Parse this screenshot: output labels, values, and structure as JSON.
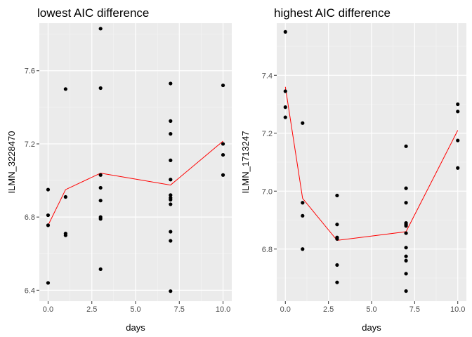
{
  "chart_data": [
    {
      "type": "scatter",
      "title": "lowest AIC difference",
      "xlabel": "days",
      "ylabel": "ILMN_3228470",
      "xlim": [
        -0.5,
        10.5
      ],
      "ylim": [
        6.34,
        7.86
      ],
      "xticks": [
        0.0,
        2.5,
        5.0,
        7.5,
        10.0
      ],
      "xtick_labels": [
        "0.0",
        "2.5",
        "5.0",
        "7.5",
        "10.0"
      ],
      "yticks": [
        6.4,
        6.8,
        7.2,
        7.6
      ],
      "ytick_labels": [
        "6.4",
        "6.8",
        "7.2",
        "7.6"
      ],
      "grid": true,
      "points": [
        [
          0,
          6.95
        ],
        [
          0,
          6.81
        ],
        [
          0,
          6.755
        ],
        [
          0,
          6.44
        ],
        [
          1,
          7.5
        ],
        [
          1,
          6.91
        ],
        [
          1,
          6.71
        ],
        [
          1,
          6.7
        ],
        [
          3,
          7.83
        ],
        [
          3,
          7.505
        ],
        [
          3,
          7.03
        ],
        [
          3,
          6.96
        ],
        [
          3,
          6.89
        ],
        [
          3,
          6.8
        ],
        [
          3,
          6.79
        ],
        [
          3,
          6.515
        ],
        [
          7,
          7.53
        ],
        [
          7,
          7.325
        ],
        [
          7,
          7.255
        ],
        [
          7,
          7.11
        ],
        [
          7,
          7.005
        ],
        [
          7,
          6.92
        ],
        [
          7,
          6.905
        ],
        [
          7,
          6.895
        ],
        [
          7,
          6.87
        ],
        [
          7,
          6.72
        ],
        [
          7,
          6.67
        ],
        [
          7,
          6.395
        ],
        [
          10,
          7.52
        ],
        [
          10,
          7.2
        ],
        [
          10,
          7.14
        ],
        [
          10,
          7.03
        ]
      ],
      "fit_line": {
        "color": "#ff0000",
        "x": [
          0,
          1,
          3,
          7,
          10
        ],
        "y": [
          6.755,
          6.95,
          7.04,
          6.975,
          7.215
        ]
      }
    },
    {
      "type": "scatter",
      "title": "highest AIC difference",
      "xlabel": "days",
      "ylabel": "ILMN_1713247",
      "xlim": [
        -0.5,
        10.5
      ],
      "ylim": [
        6.62,
        7.58
      ],
      "xticks": [
        0.0,
        2.5,
        5.0,
        7.5,
        10.0
      ],
      "xtick_labels": [
        "0.0",
        "2.5",
        "5.0",
        "7.5",
        "10.0"
      ],
      "yticks": [
        6.8,
        7.0,
        7.2,
        7.4
      ],
      "ytick_labels": [
        "6.8",
        "7.0",
        "7.2",
        "7.4"
      ],
      "grid": true,
      "points": [
        [
          0,
          7.55
        ],
        [
          0,
          7.345
        ],
        [
          0,
          7.29
        ],
        [
          0,
          7.255
        ],
        [
          1,
          7.235
        ],
        [
          1,
          6.96
        ],
        [
          1,
          6.915
        ],
        [
          1,
          6.8
        ],
        [
          3,
          6.985
        ],
        [
          3,
          6.885
        ],
        [
          3,
          6.84
        ],
        [
          3,
          6.835
        ],
        [
          3,
          6.745
        ],
        [
          3,
          6.685
        ],
        [
          7,
          7.155
        ],
        [
          7,
          7.01
        ],
        [
          7,
          6.96
        ],
        [
          7,
          6.89
        ],
        [
          7,
          6.885
        ],
        [
          7,
          6.88
        ],
        [
          7,
          6.855
        ],
        [
          7,
          6.805
        ],
        [
          7,
          6.775
        ],
        [
          7,
          6.76
        ],
        [
          7,
          6.715
        ],
        [
          7,
          6.655
        ],
        [
          10,
          7.3
        ],
        [
          10,
          7.275
        ],
        [
          10,
          7.175
        ],
        [
          10,
          7.08
        ]
      ],
      "fit_line": {
        "color": "#ff0000",
        "x": [
          0,
          1,
          3,
          7,
          10
        ],
        "y": [
          7.36,
          6.975,
          6.83,
          6.86,
          7.21
        ]
      }
    }
  ]
}
